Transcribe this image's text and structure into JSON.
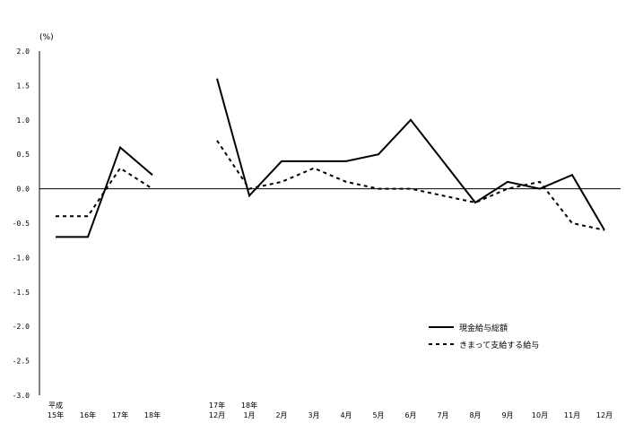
{
  "chart_data": {
    "type": "line",
    "unit_label": "(%)",
    "ylim": [
      -3.0,
      2.0
    ],
    "yticks": [
      "2.0",
      "1.5",
      "1.0",
      "0.5",
      "0.0",
      "-0.5",
      "-1.0",
      "-1.5",
      "-2.0",
      "-2.5",
      "-3.0"
    ],
    "categories": [
      {
        "line1": "平成",
        "line2": "15年"
      },
      {
        "line1": "",
        "line2": "16年"
      },
      {
        "line1": "",
        "line2": "17年"
      },
      {
        "line1": "",
        "line2": "18年"
      },
      {
        "line1": "17年",
        "line2": "12月"
      },
      {
        "line1": "18年",
        "line2": "1月"
      },
      {
        "line1": "",
        "line2": "2月"
      },
      {
        "line1": "",
        "line2": "3月"
      },
      {
        "line1": "",
        "line2": "4月"
      },
      {
        "line1": "",
        "line2": "5月"
      },
      {
        "line1": "",
        "line2": "6月"
      },
      {
        "line1": "",
        "line2": "7月"
      },
      {
        "line1": "",
        "line2": "8月"
      },
      {
        "line1": "",
        "line2": "9月"
      },
      {
        "line1": "",
        "line2": "10月"
      },
      {
        "line1": "",
        "line2": "11月"
      },
      {
        "line1": "",
        "line2": "12月"
      }
    ],
    "segments": [
      [
        0,
        3
      ],
      [
        4,
        16
      ]
    ],
    "series": [
      {
        "name": "現金給与総額",
        "style": "solid",
        "values": [
          -0.7,
          -0.7,
          0.6,
          0.2,
          1.6,
          -0.1,
          0.4,
          0.4,
          0.4,
          0.5,
          1.0,
          0.4,
          -0.2,
          0.1,
          0.0,
          0.2,
          -0.6
        ]
      },
      {
        "name": "きまって支給する給与",
        "style": "dashed",
        "values": [
          -0.4,
          -0.4,
          0.3,
          0.0,
          0.7,
          0.0,
          0.1,
          0.3,
          0.1,
          0.0,
          0.0,
          -0.1,
          -0.2,
          0.0,
          0.1,
          -0.5,
          -0.6
        ]
      }
    ],
    "legend_position": "lower-right",
    "grid": false
  }
}
